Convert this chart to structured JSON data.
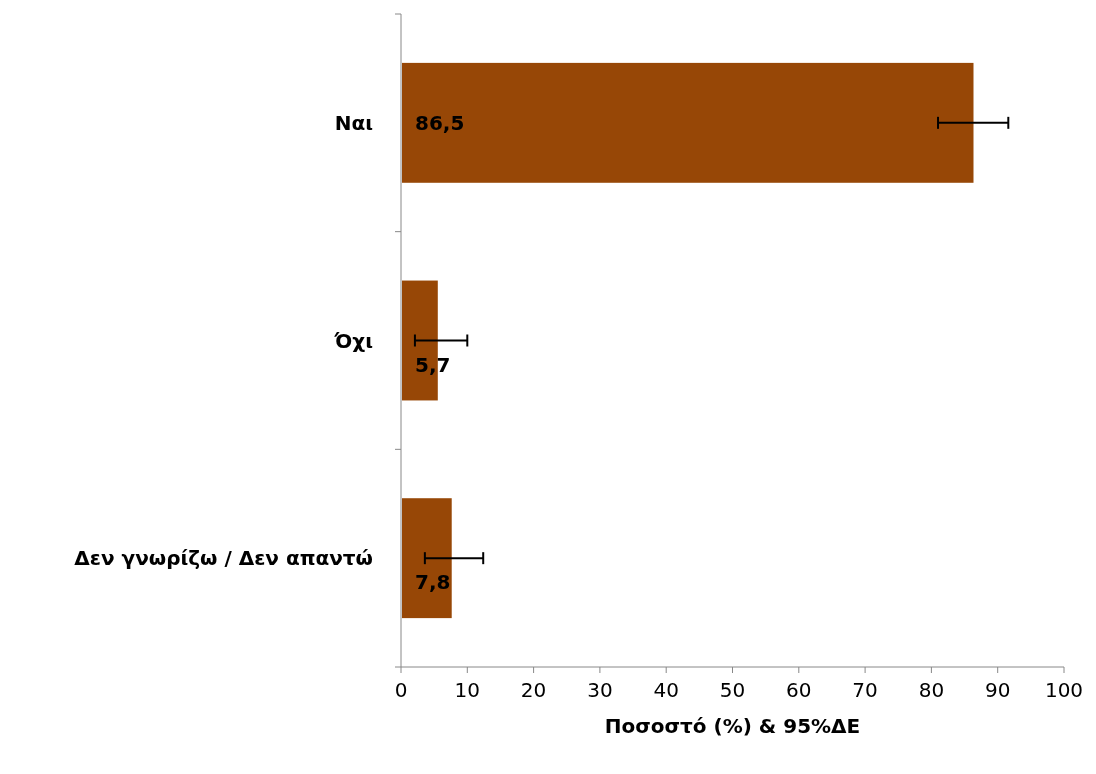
{
  "chart_data": {
    "type": "bar",
    "orientation": "horizontal",
    "xlabel": "Ποσοστό (%) & 95%ΔΕ",
    "categories": [
      "Ναι",
      "Όχι",
      "Δεν γνωρίζω / Δεν απαντώ"
    ],
    "values": [
      86.5,
      5.7,
      7.8
    ],
    "value_labels": [
      "86,5",
      "5,7",
      "7,8"
    ],
    "errors": [
      [
        81.0,
        91.6
      ],
      [
        2.1,
        10.0
      ],
      [
        3.6,
        12.4
      ]
    ],
    "color": "#974706",
    "xlim": [
      0,
      100
    ],
    "xticks": [
      0,
      10,
      20,
      30,
      40,
      50,
      60,
      70,
      80,
      90,
      100
    ],
    "grid": false
  }
}
